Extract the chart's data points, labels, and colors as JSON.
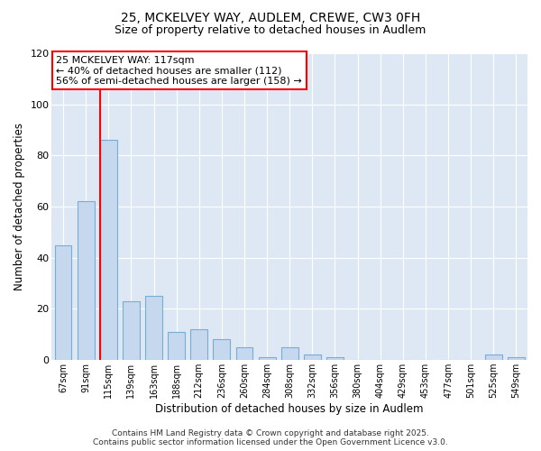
{
  "title": "25, MCKELVEY WAY, AUDLEM, CREWE, CW3 0FH",
  "subtitle": "Size of property relative to detached houses in Audlem",
  "xlabel": "Distribution of detached houses by size in Audlem",
  "ylabel": "Number of detached properties",
  "bar_color": "#c5d8ee",
  "bar_edge_color": "#7aadd4",
  "bg_color": "#dde8f4",
  "grid_color": "#ffffff",
  "categories": [
    "67sqm",
    "91sqm",
    "115sqm",
    "139sqm",
    "163sqm",
    "188sqm",
    "212sqm",
    "236sqm",
    "260sqm",
    "284sqm",
    "308sqm",
    "332sqm",
    "356sqm",
    "380sqm",
    "404sqm",
    "429sqm",
    "453sqm",
    "477sqm",
    "501sqm",
    "525sqm",
    "549sqm"
  ],
  "values": [
    45,
    62,
    86,
    23,
    25,
    11,
    12,
    8,
    5,
    1,
    5,
    2,
    1,
    0,
    0,
    0,
    0,
    0,
    0,
    2,
    1
  ],
  "redline_idx": 2,
  "redline_label": "25 MCKELVEY WAY: 117sqm",
  "annotation_line1": "← 40% of detached houses are smaller (112)",
  "annotation_line2": "56% of semi-detached houses are larger (158) →",
  "ylim": [
    0,
    120
  ],
  "yticks": [
    0,
    20,
    40,
    60,
    80,
    100,
    120
  ],
  "footer1": "Contains HM Land Registry data © Crown copyright and database right 2025.",
  "footer2": "Contains public sector information licensed under the Open Government Licence v3.0.",
  "title_fontsize": 10,
  "subtitle_fontsize": 9,
  "annotation_fontsize": 8,
  "footer_fontsize": 6.5
}
